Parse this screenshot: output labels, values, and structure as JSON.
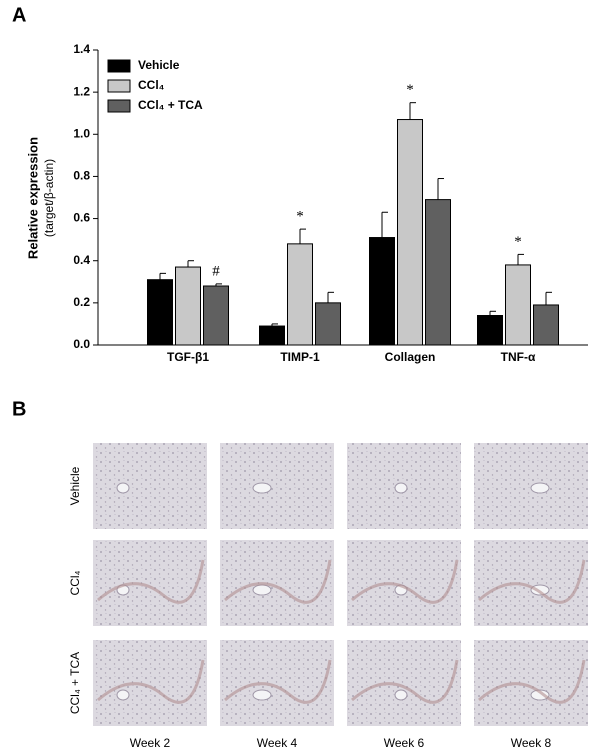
{
  "panel_a": {
    "label": "A"
  },
  "chart_data": {
    "type": "bar",
    "ylabel": "Relative expression",
    "ylabel_sub": "(target/β-actin)",
    "categories": [
      "TGF-β1",
      "TIMP-1",
      "Collagen",
      "TNF-α"
    ],
    "series": [
      {
        "name": "Vehicle",
        "color": "#000000",
        "values": [
          0.31,
          0.09,
          0.51,
          0.14
        ],
        "errors": [
          0.03,
          0.01,
          0.12,
          0.02
        ],
        "annotations": [
          null,
          null,
          null,
          null
        ]
      },
      {
        "name": "CCl₄",
        "color": "#c8c8c8",
        "values": [
          0.37,
          0.48,
          1.07,
          0.38
        ],
        "errors": [
          0.03,
          0.07,
          0.08,
          0.05
        ],
        "annotations": [
          null,
          "*",
          "*",
          "*"
        ]
      },
      {
        "name": "CCl₄ + TCA",
        "color": "#606060",
        "values": [
          0.28,
          0.2,
          0.69,
          0.19
        ],
        "errors": [
          0.01,
          0.05,
          0.1,
          0.06
        ],
        "annotations": [
          "#",
          null,
          null,
          null
        ]
      }
    ],
    "ylim": [
      0,
      1.4
    ],
    "yticks": [
      {
        "value": 0,
        "label": "0.0"
      },
      0.2,
      0.4,
      0.6,
      0.8,
      {
        "value": 1,
        "label": "1.0"
      },
      1.2,
      1.4
    ],
    "legend": "upper left"
  },
  "panel_b": {
    "label": "B",
    "rows": [
      "Vehicle",
      "CCl₄",
      "CCl₄ + TCA"
    ],
    "columns": [
      "Week 2",
      "Week 4",
      "Week 6",
      "Week 8"
    ]
  }
}
